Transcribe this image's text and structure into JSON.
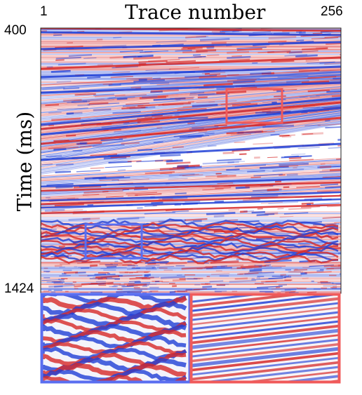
{
  "figure": {
    "title": "Trace number",
    "x_axis": {
      "start_label": "1",
      "end_label": "256"
    },
    "y_axis": {
      "label": "Time (ms)",
      "start_label": "400",
      "end_label": "1424"
    },
    "colors": {
      "positive": "#d62828",
      "negative": "#1f3fd6",
      "background": "#ffffff",
      "highlight_box_red": "#f05a5a",
      "highlight_box_blue": "#5a6ef0"
    },
    "insets": [
      {
        "name": "blue-box-zoom",
        "border_color": "#5a6ef0"
      },
      {
        "name": "red-box-zoom",
        "border_color": "#f05a5a"
      }
    ]
  }
}
